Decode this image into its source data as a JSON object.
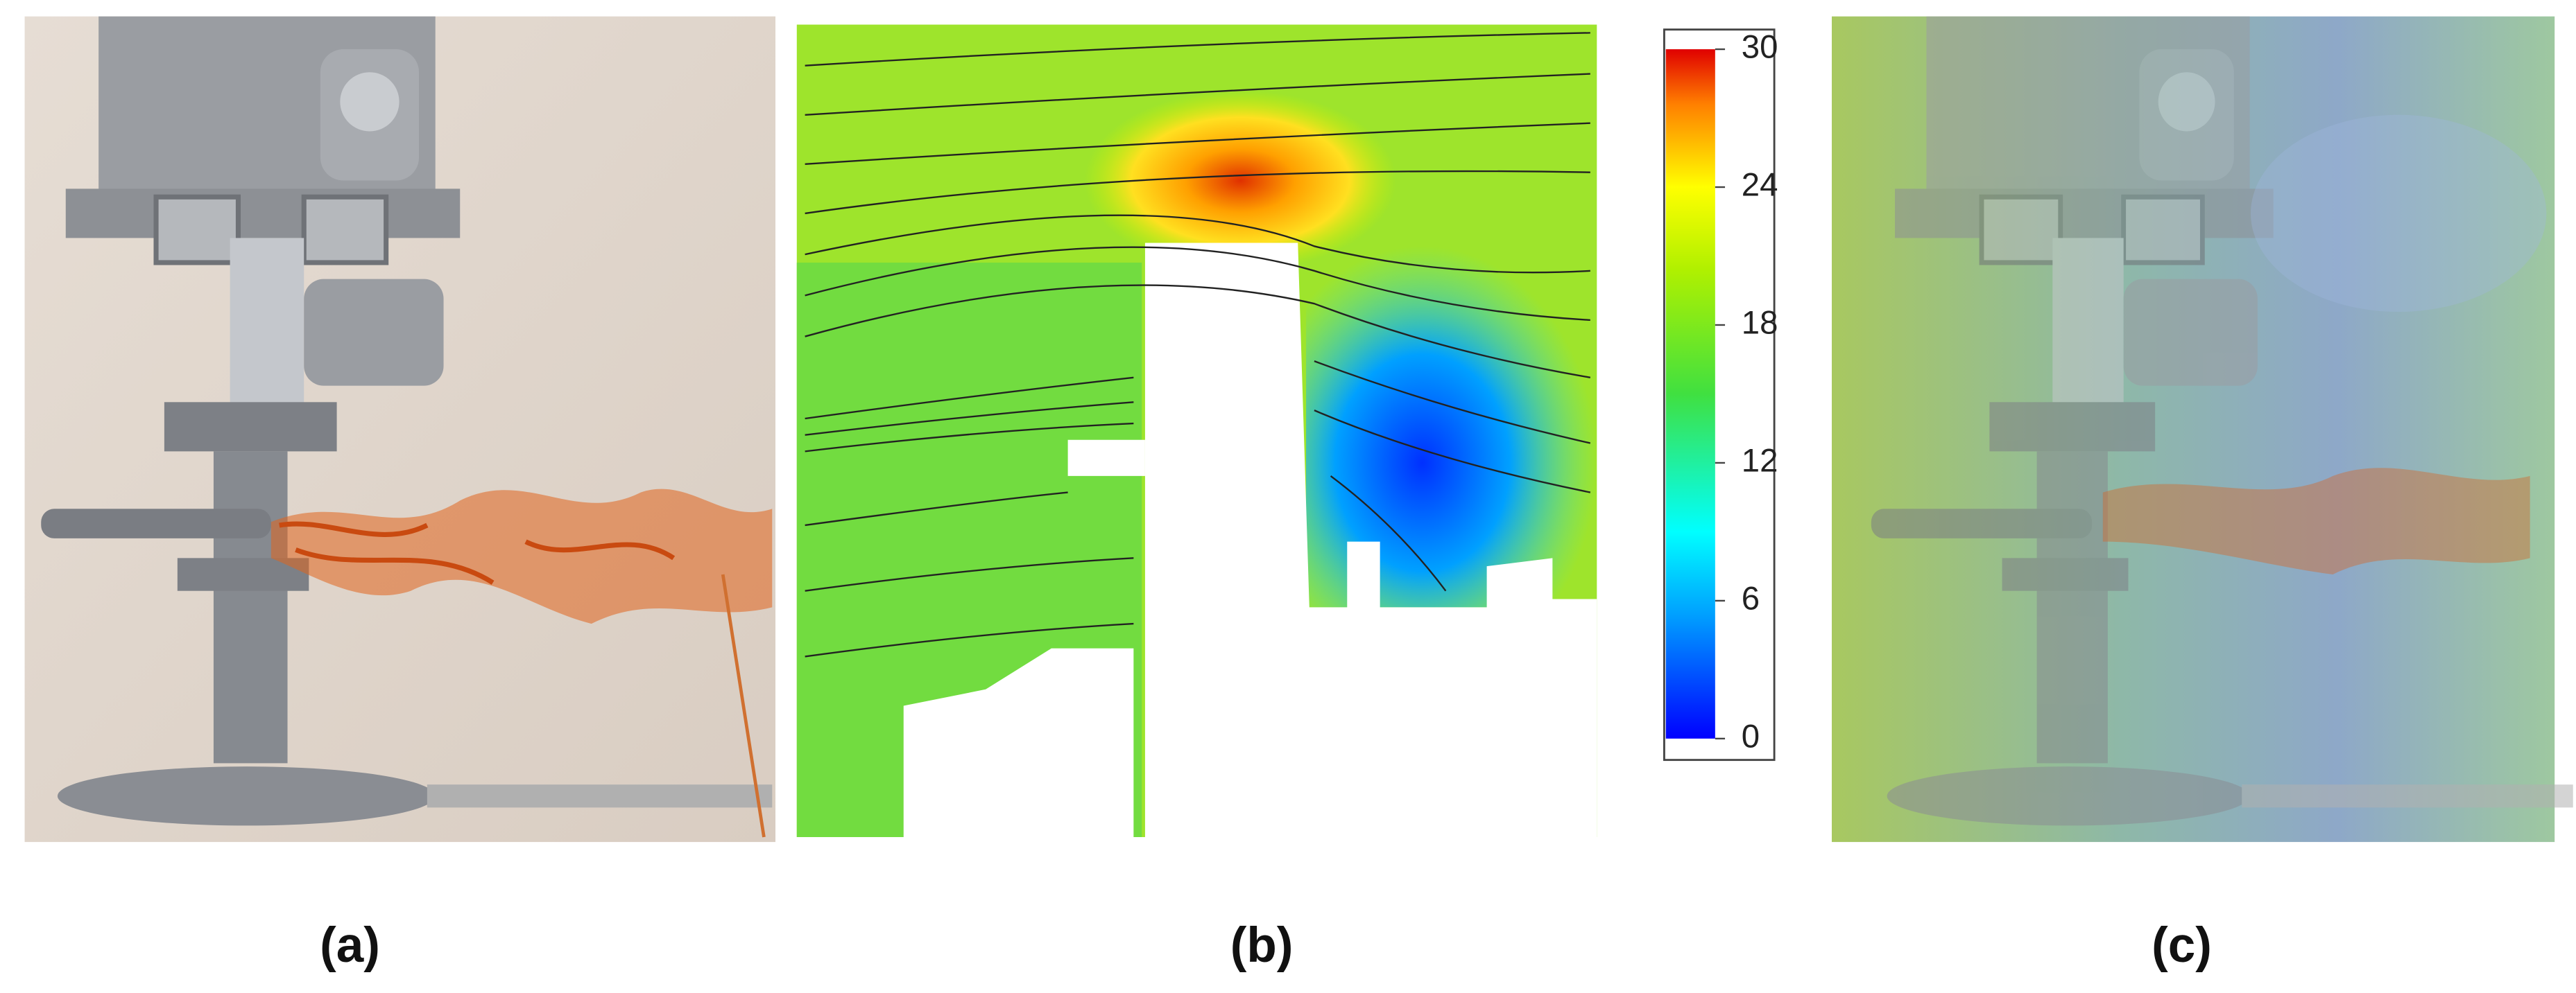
{
  "panels": [
    {
      "label": "(a)"
    },
    {
      "label": "(b)"
    },
    {
      "label": "(c)"
    }
  ],
  "colorbar": {
    "range": [
      0,
      30
    ],
    "ticks": [
      0,
      6,
      12,
      18,
      24,
      30
    ]
  }
}
